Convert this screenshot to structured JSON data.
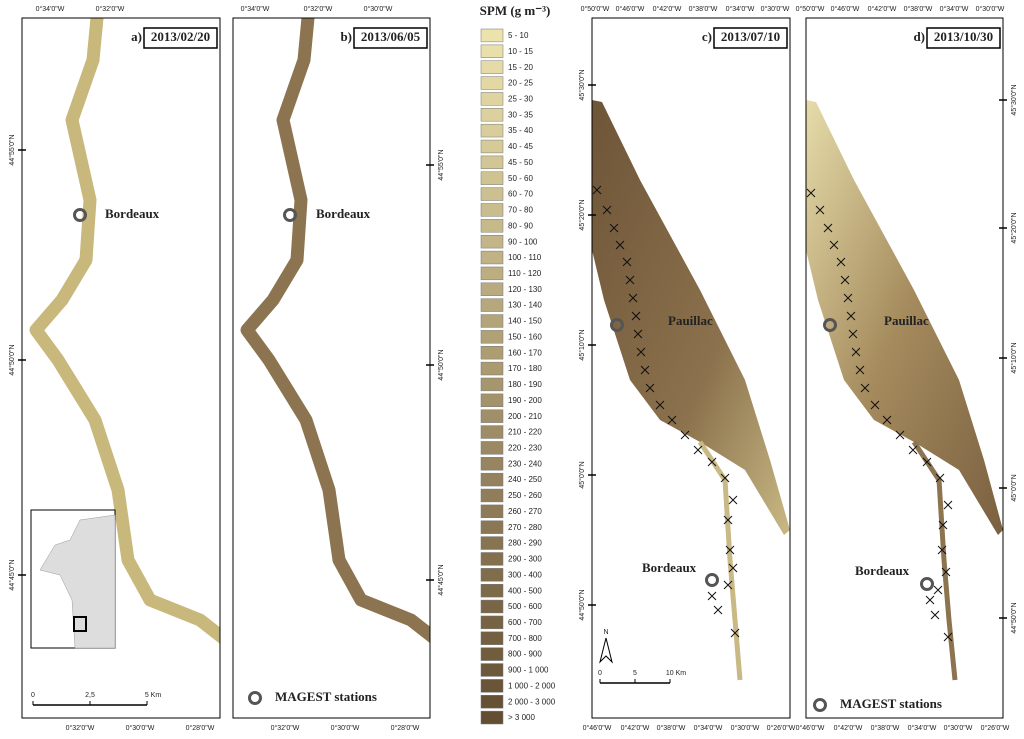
{
  "legend": {
    "title": "SPM (g m⁻³)",
    "classes": [
      "5 - 10",
      "10 - 15",
      "15 - 20",
      "20 - 25",
      "25 - 30",
      "30 - 35",
      "35 - 40",
      "40 - 45",
      "45 - 50",
      "50 - 60",
      "60 - 70",
      "70 - 80",
      "80 - 90",
      "90 - 100",
      "100 - 110",
      "110 - 120",
      "120 - 130",
      "130 - 140",
      "140 - 150",
      "150 - 160",
      "160 - 170",
      "170 - 180",
      "180 - 190",
      "190 - 200",
      "200 - 210",
      "210 - 220",
      "220 - 230",
      "230 - 240",
      "240 - 250",
      "250 - 260",
      "260 - 270",
      "270 - 280",
      "280 - 290",
      "290 - 300",
      "300 - 400",
      "400 - 500",
      "500 - 600",
      "600 - 700",
      "700 - 800",
      "800 - 900",
      "900 - 1 000",
      "1 000 - 2 000",
      "2 000 - 3 000",
      "> 3 000"
    ]
  },
  "panels": [
    {
      "label": "a)",
      "date": "2013/02/20",
      "stations": [
        "Bordeaux"
      ],
      "top_ticks": [
        "0°34'0\"W",
        "0°32'0\"W"
      ],
      "bottom_ticks": [
        "0°32'0\"W",
        "0°30'0\"W",
        "0°28'0\"W"
      ],
      "side_ticks": [
        "44°55'0\"N",
        "44°50'0\"N",
        "44°45'0\"N"
      ],
      "scale": [
        "0",
        "2,5",
        "5 Km"
      ]
    },
    {
      "label": "b)",
      "date": "2013/06/05",
      "stations": [
        "Bordeaux"
      ],
      "top_ticks": [
        "0°34'0\"W",
        "0°32'0\"W",
        "0°30'0\"W"
      ],
      "bottom_ticks": [
        "0°32'0\"W",
        "0°30'0\"W",
        "0°28'0\"W"
      ],
      "side_ticks": [
        "44°55'0\"N",
        "44°50'0\"N",
        "44°45'0\"N"
      ],
      "key": "MAGEST stations"
    },
    {
      "label": "c)",
      "date": "2013/07/10",
      "stations": [
        "Pauillac",
        "Bordeaux"
      ],
      "top_ticks": [
        "0°50'0\"W",
        "0°46'0\"W",
        "0°42'0\"W",
        "0°38'0\"W",
        "0°34'0\"W",
        "0°30'0\"W"
      ],
      "bottom_ticks": [
        "0°46'0\"W",
        "0°42'0\"W",
        "0°38'0\"W",
        "0°34'0\"W",
        "0°30'0\"W",
        "0°26'0\"W"
      ],
      "side_ticks": [
        "45°30'0\"N",
        "45°20'0\"N",
        "45°10'0\"N",
        "45°0'0\"N",
        "44°50'0\"N"
      ],
      "scale": [
        "0",
        "5",
        "10 Km"
      ],
      "north": "N"
    },
    {
      "label": "d)",
      "date": "2013/10/30",
      "stations": [
        "Pauillac",
        "Bordeaux"
      ],
      "top_ticks": [
        "0°50'0\"W",
        "0°46'0\"W",
        "0°42'0\"W",
        "0°38'0\"W",
        "0°34'0\"W",
        "0°30'0\"W"
      ],
      "bottom_ticks": [
        "0°46'0\"W",
        "0°42'0\"W",
        "0°38'0\"W",
        "0°34'0\"W",
        "0°30'0\"W",
        "0°26'0\"W"
      ],
      "side_ticks": [
        "45°30'0\"N",
        "45°20'0\"N",
        "45°10'0\"N",
        "45°0'0\"N",
        "44°50'0\"N"
      ],
      "key": "MAGEST stations"
    }
  ]
}
